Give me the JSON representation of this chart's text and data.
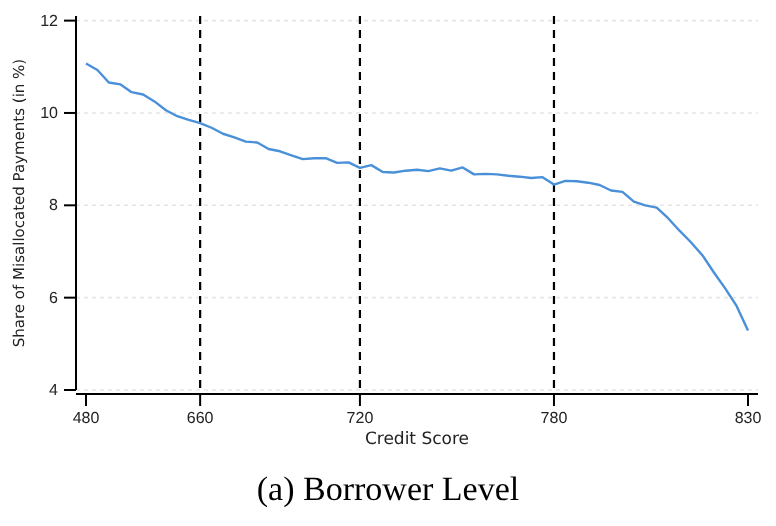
{
  "chart_data": {
    "type": "line",
    "title": "(a) Borrower Level",
    "xlabel": "Credit Score",
    "ylabel": "Share of Misallocated Payments (in %)",
    "categories": [
      "480",
      null,
      null,
      null,
      null,
      null,
      null,
      null,
      null,
      null,
      "660",
      null,
      null,
      null,
      null,
      null,
      null,
      null,
      null,
      null,
      null,
      null,
      null,
      null,
      "720",
      null,
      null,
      null,
      null,
      null,
      null,
      null,
      null,
      null,
      null,
      null,
      null,
      null,
      null,
      null,
      null,
      "780",
      null,
      null,
      null,
      null,
      null,
      null,
      null,
      null,
      null,
      null,
      null,
      null,
      null,
      null,
      null,
      null,
      "830"
    ],
    "series": [
      {
        "color": "#4a90d9",
        "values": [
          11.07,
          10.93,
          10.66,
          10.62,
          10.45,
          10.4,
          10.25,
          10.06,
          9.93,
          9.85,
          9.78,
          9.68,
          9.55,
          9.47,
          9.38,
          9.36,
          9.22,
          9.17,
          9.08,
          9.0,
          9.02,
          9.02,
          8.92,
          8.93,
          8.81,
          8.87,
          8.72,
          8.71,
          8.75,
          8.77,
          8.74,
          8.8,
          8.75,
          8.82,
          8.67,
          8.68,
          8.67,
          8.64,
          8.62,
          8.59,
          8.61,
          8.45,
          8.53,
          8.52,
          8.49,
          8.44,
          8.32,
          8.29,
          8.08,
          8.0,
          7.95,
          7.72,
          7.45,
          7.2,
          6.92,
          6.55,
          6.2,
          5.82,
          5.29
        ]
      }
    ],
    "ylim": [
      4,
      12.1
    ],
    "yticks": [
      4,
      6,
      8,
      10,
      12
    ],
    "grid": "y",
    "marker": "none",
    "line_style": "solid",
    "ref_lines": [
      {
        "axis": "x",
        "value": "660",
        "color": "#000000",
        "line_style": "dashed"
      },
      {
        "axis": "x",
        "value": "720",
        "color": "#000000",
        "line_style": "dashed"
      },
      {
        "axis": "x",
        "value": "780",
        "color": "#000000",
        "line_style": "dashed"
      }
    ]
  }
}
